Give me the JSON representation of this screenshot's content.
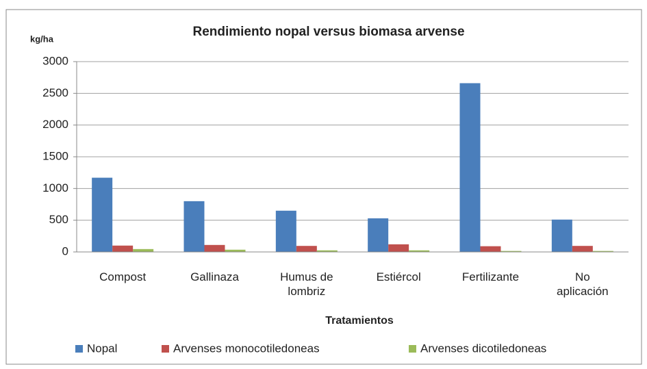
{
  "chart_data": {
    "type": "bar",
    "title": "Rendimiento nopal versus biomasa arvense",
    "y_label": "kg/ha",
    "x_label": "Tratamientos",
    "categories": [
      "Compost",
      "Gallinaza",
      "Humus de lombriz",
      "Estiércol",
      "Fertilizante",
      "No aplicación"
    ],
    "series": [
      {
        "name": "Nopal",
        "color": "#4a7ebb",
        "values": [
          1170,
          800,
          650,
          530,
          2660,
          510
        ]
      },
      {
        "name": "Arvenses monocotiledoneas",
        "color": "#c0504d",
        "values": [
          100,
          110,
          95,
          120,
          90,
          95
        ]
      },
      {
        "name": "Arvenses dicotiledoneas",
        "color": "#9bbb59",
        "values": [
          45,
          35,
          25,
          25,
          15,
          15
        ]
      }
    ],
    "ylim": [
      0,
      3000
    ],
    "yticks": [
      0,
      500,
      1000,
      1500,
      2000,
      2500,
      3000
    ],
    "grid": true,
    "legend": "bottom"
  }
}
